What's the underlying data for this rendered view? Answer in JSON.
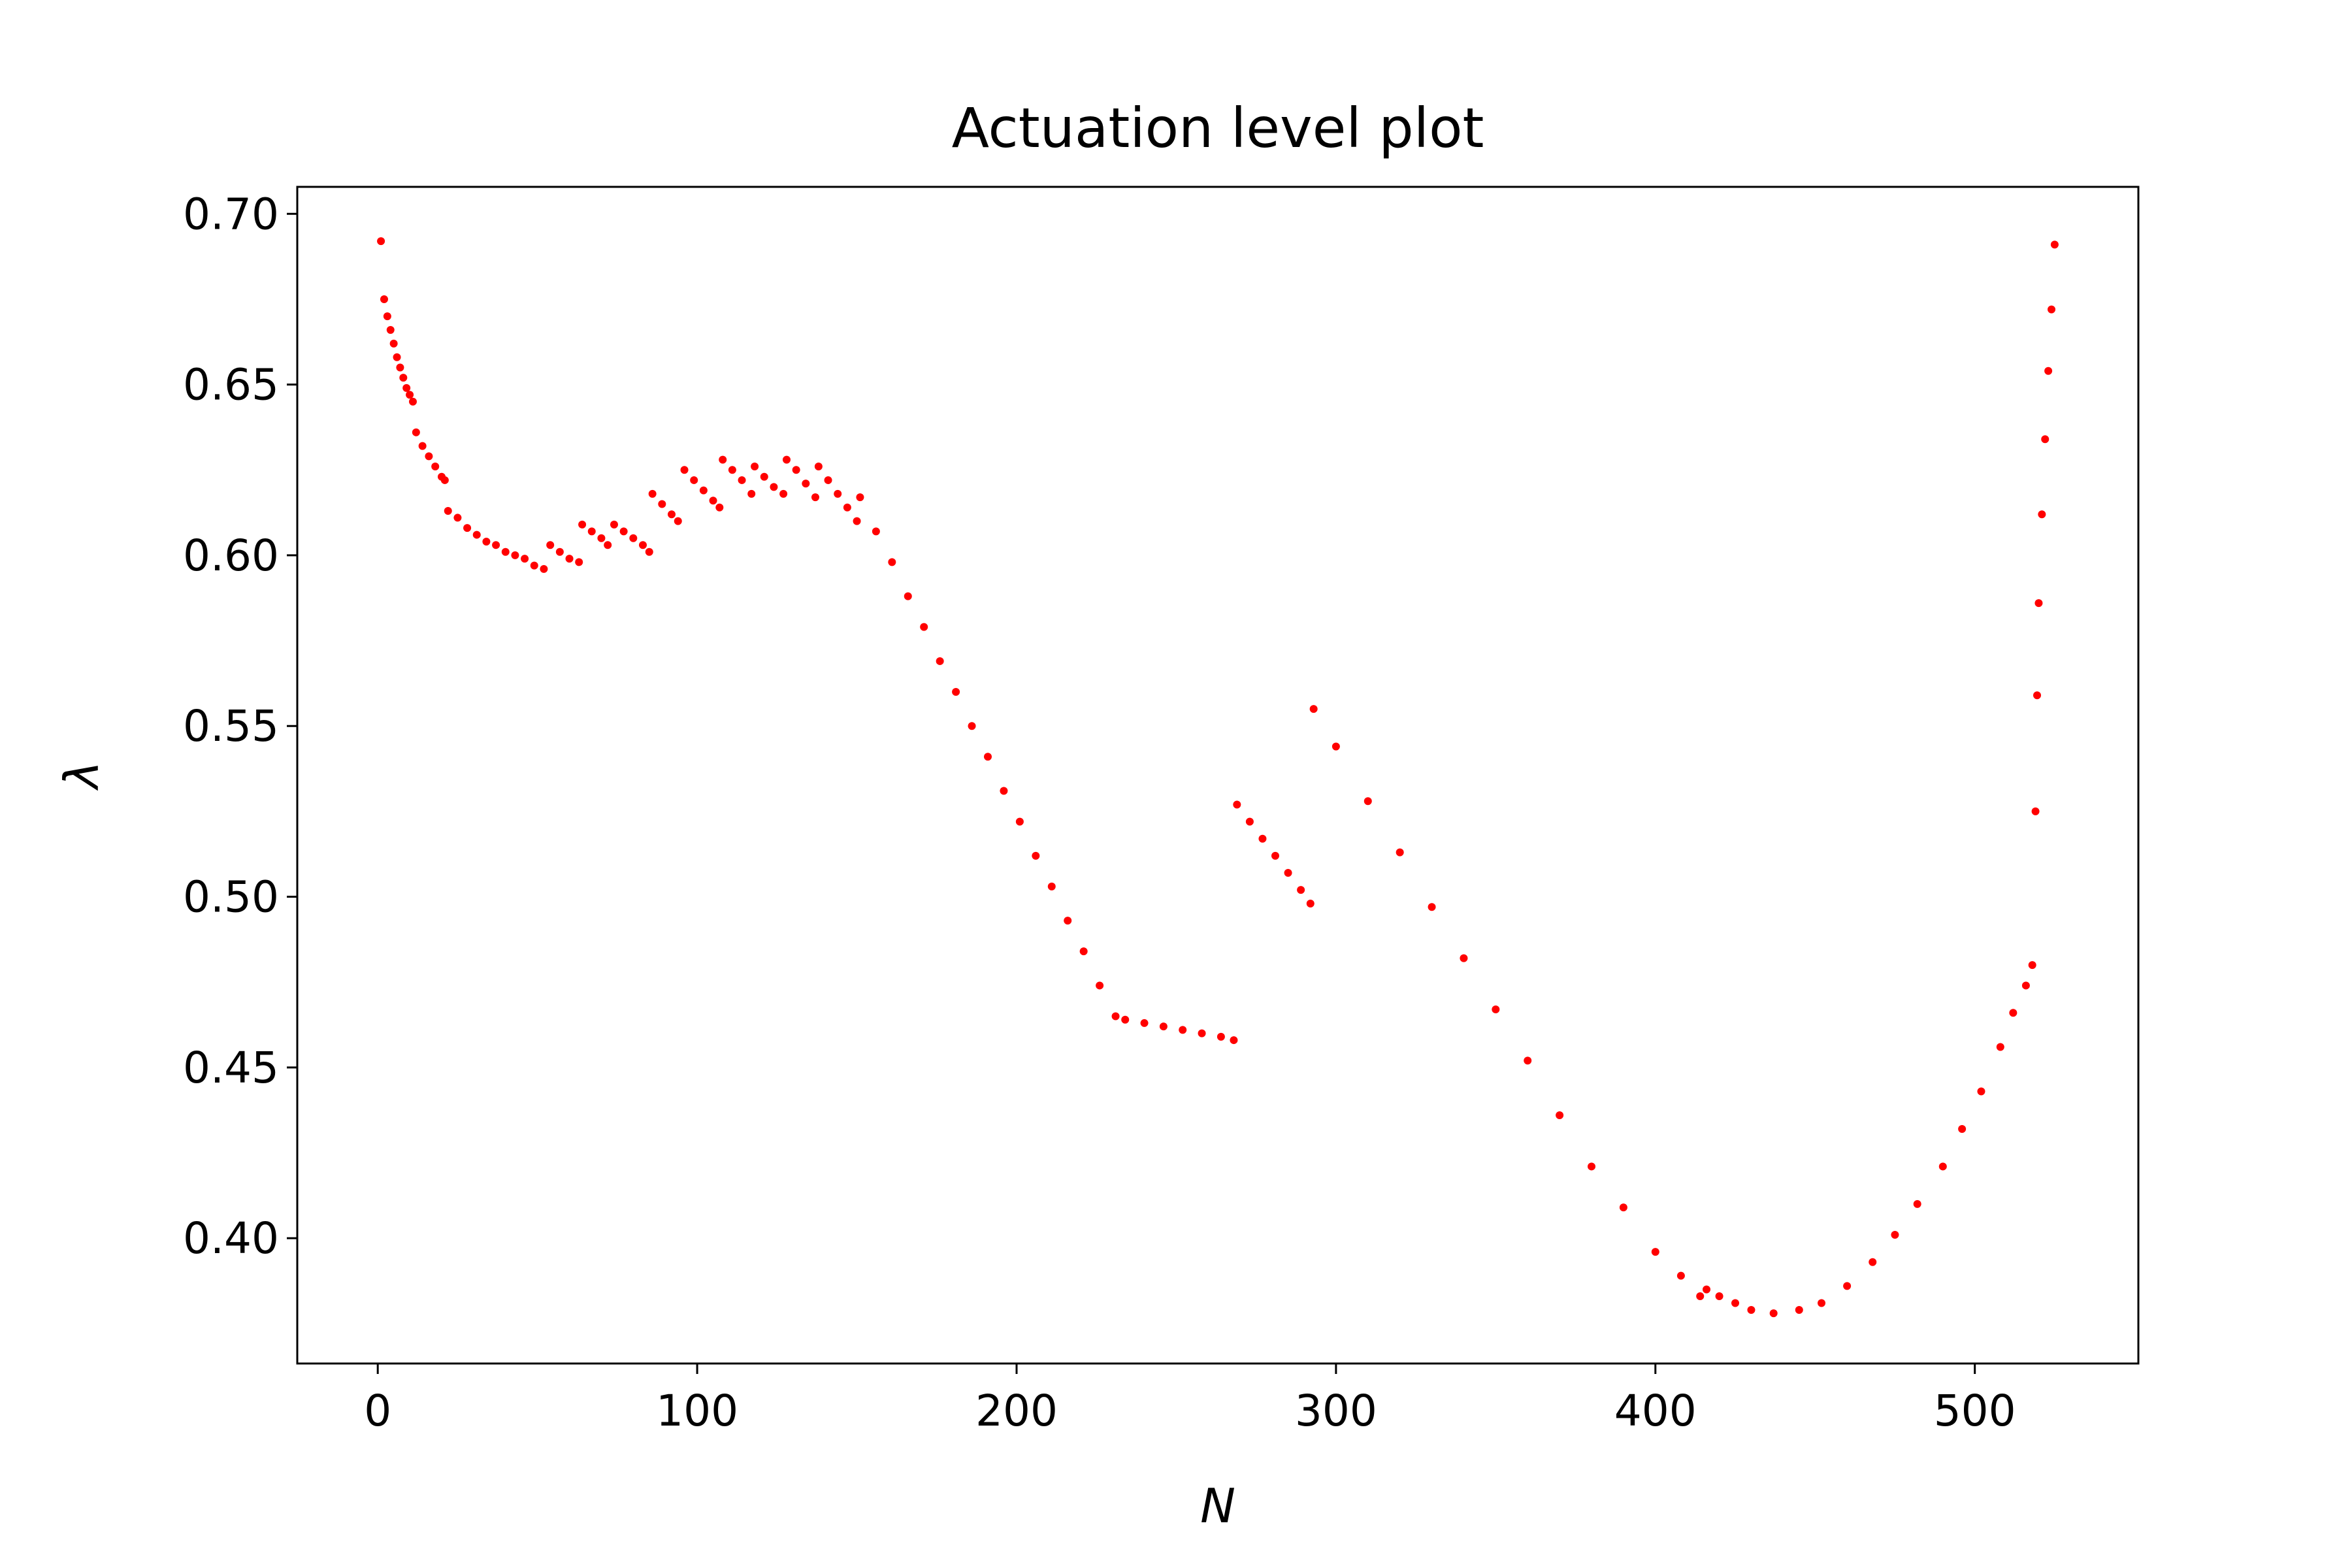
{
  "chart_data": {
    "type": "scatter",
    "title": "Actuation level plot",
    "x_label": "N",
    "y_label": "λ",
    "color": "#ff0000",
    "x": [
      1,
      2,
      3,
      4,
      5,
      6,
      7,
      8,
      9,
      10,
      11,
      12,
      14,
      16,
      18,
      20,
      21,
      22,
      25,
      28,
      31,
      34,
      37,
      40,
      43,
      46,
      49,
      52,
      54,
      57,
      60,
      63,
      64,
      67,
      70,
      72,
      74,
      77,
      80,
      83,
      85,
      86,
      89,
      92,
      94,
      96,
      99,
      102,
      105,
      107,
      108,
      111,
      114,
      117,
      118,
      121,
      124,
      127,
      128,
      131,
      134,
      137,
      138,
      141,
      144,
      147,
      150,
      151,
      156,
      161,
      166,
      171,
      176,
      181,
      186,
      191,
      196,
      201,
      206,
      211,
      216,
      221,
      226,
      231,
      234,
      240,
      246,
      252,
      258,
      264,
      268,
      269,
      273,
      277,
      281,
      285,
      289,
      292,
      293,
      300,
      310,
      320,
      330,
      340,
      350,
      360,
      370,
      380,
      390,
      400,
      408,
      414,
      416,
      420,
      425,
      430,
      437,
      445,
      452,
      460,
      468,
      475,
      482,
      490,
      496,
      502,
      508,
      512,
      516,
      518,
      519,
      519.5,
      520,
      521,
      522,
      523,
      524,
      525
    ],
    "values": [
      0.692,
      0.675,
      0.67,
      0.666,
      0.662,
      0.658,
      0.655,
      0.652,
      0.649,
      0.647,
      0.645,
      0.636,
      0.632,
      0.629,
      0.626,
      0.623,
      0.622,
      0.613,
      0.611,
      0.608,
      0.606,
      0.604,
      0.603,
      0.601,
      0.6,
      0.599,
      0.597,
      0.596,
      0.603,
      0.601,
      0.599,
      0.598,
      0.609,
      0.607,
      0.605,
      0.603,
      0.609,
      0.607,
      0.605,
      0.603,
      0.601,
      0.618,
      0.615,
      0.612,
      0.61,
      0.625,
      0.622,
      0.619,
      0.616,
      0.614,
      0.628,
      0.625,
      0.622,
      0.618,
      0.626,
      0.623,
      0.62,
      0.618,
      0.628,
      0.625,
      0.621,
      0.617,
      0.626,
      0.622,
      0.618,
      0.614,
      0.61,
      0.617,
      0.607,
      0.598,
      0.588,
      0.579,
      0.569,
      0.56,
      0.55,
      0.541,
      0.531,
      0.522,
      0.512,
      0.503,
      0.493,
      0.484,
      0.474,
      0.465,
      0.464,
      0.463,
      0.462,
      0.461,
      0.46,
      0.459,
      0.458,
      0.527,
      0.522,
      0.517,
      0.512,
      0.507,
      0.502,
      0.498,
      0.555,
      0.544,
      0.528,
      0.513,
      0.497,
      0.482,
      0.467,
      0.452,
      0.436,
      0.421,
      0.409,
      0.396,
      0.389,
      0.383,
      0.385,
      0.383,
      0.381,
      0.379,
      0.378,
      0.379,
      0.381,
      0.386,
      0.393,
      0.401,
      0.41,
      0.421,
      0.432,
      0.443,
      0.456,
      0.466,
      0.474,
      0.48,
      0.525,
      0.559,
      0.586,
      0.612,
      0.634,
      0.654,
      0.672,
      0.691
    ],
    "xlim": [
      -25.2,
      551.2
    ],
    "ylim": [
      0.3633,
      0.7079
    ],
    "xticks": [
      0,
      100,
      200,
      300,
      400,
      500
    ],
    "yticks": [
      {
        "value": 0.4,
        "label": "0.40"
      },
      0.45,
      {
        "value": 0.5,
        "label": "0.50"
      },
      0.55,
      {
        "value": 0.6,
        "label": "0.60"
      },
      0.65,
      {
        "value": 0.7,
        "label": "0.70"
      }
    ]
  }
}
